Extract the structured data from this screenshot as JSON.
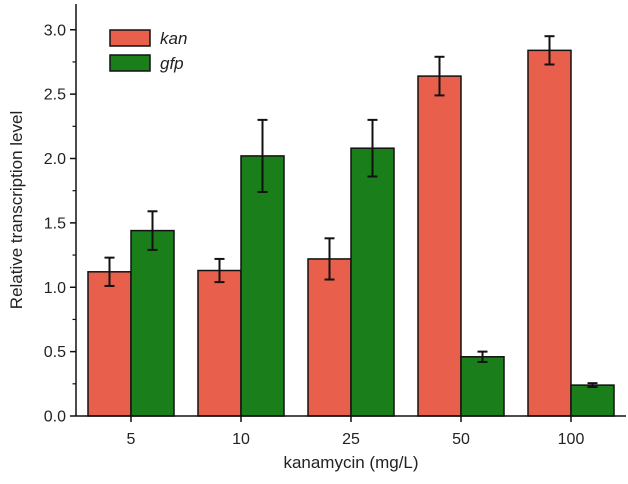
{
  "chart_data": {
    "type": "bar",
    "categories": [
      "5",
      "10",
      "25",
      "50",
      "100"
    ],
    "series": [
      {
        "name": "kan",
        "color": "#e8604c",
        "values": [
          1.12,
          1.13,
          1.22,
          2.64,
          2.84
        ],
        "errors": [
          0.11,
          0.09,
          0.16,
          0.15,
          0.11
        ]
      },
      {
        "name": "gfp",
        "color": "#1a7f1a",
        "values": [
          1.44,
          2.02,
          2.08,
          0.46,
          0.24
        ],
        "errors": [
          0.15,
          0.28,
          0.22,
          0.04,
          0.015
        ]
      }
    ],
    "xlabel": "kanamycin (mg/L)",
    "ylabel": "Relative transcription level",
    "ylim": [
      0,
      3.2
    ],
    "yticks": [
      "0.0",
      "0.5",
      "1.0",
      "1.5",
      "2.0",
      "2.5",
      "3.0"
    ],
    "grid": false,
    "legend_position": "top-left"
  }
}
